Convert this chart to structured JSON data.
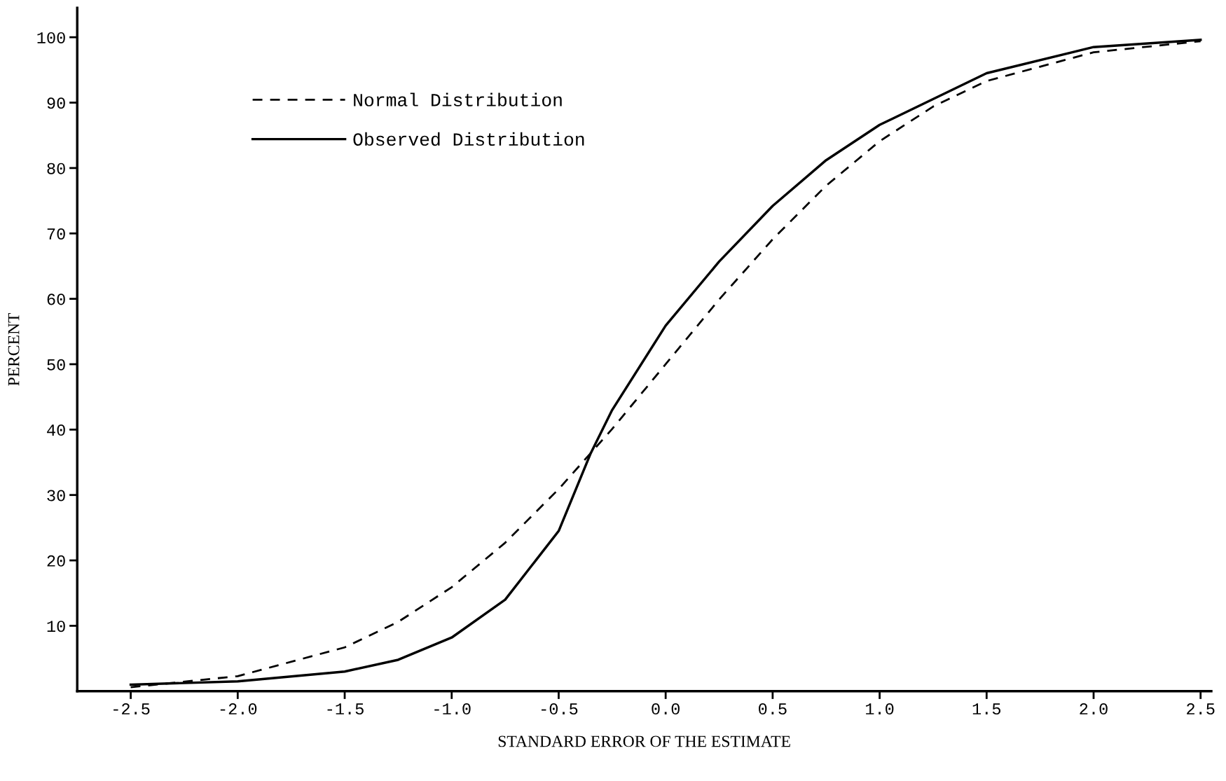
{
  "chart_data": {
    "type": "line",
    "xlabel": "STANDARD ERROR OF THE ESTIMATE",
    "ylabel": "PERCENT",
    "xlim": [
      -2.75,
      2.55
    ],
    "ylim": [
      0,
      104.5
    ],
    "xticks": [
      {
        "value": -2.5,
        "label": "-2.5"
      },
      {
        "value": -2.0,
        "label": "-2.0"
      },
      {
        "value": -1.5,
        "label": "-1.5"
      },
      {
        "value": -1.0,
        "label": "-1.0"
      },
      {
        "value": -0.5,
        "label": "-0.5"
      },
      {
        "value": 0.0,
        "label": "0.0"
      },
      {
        "value": 0.5,
        "label": "0.5"
      },
      {
        "value": 1.0,
        "label": "1.0"
      },
      {
        "value": 1.5,
        "label": "1.5"
      },
      {
        "value": 2.0,
        "label": "2.0"
      },
      {
        "value": 2.5,
        "label": "2.5"
      }
    ],
    "yticks": [
      10,
      20,
      30,
      40,
      50,
      60,
      70,
      80,
      90,
      100
    ],
    "grid": false,
    "legend": "top left",
    "marker": "none",
    "series": [
      {
        "name": "Normal Distribution",
        "color": "#000000",
        "line_style": "dashed",
        "x": [
          -2.5,
          -2.0,
          -1.5,
          -1.25,
          -1.0,
          -0.75,
          -0.5,
          -0.25,
          0.0,
          0.25,
          0.5,
          0.75,
          1.0,
          1.25,
          1.5,
          2.0,
          2.5
        ],
        "values": [
          0.6,
          2.3,
          6.7,
          10.6,
          15.9,
          22.7,
          30.9,
          40.1,
          50.0,
          59.9,
          69.1,
          77.3,
          84.1,
          89.4,
          93.3,
          97.7,
          99.4
        ]
      },
      {
        "name": "Observed Distribution",
        "color": "#000000",
        "line_style": "solid",
        "x": [
          -2.5,
          -2.0,
          -1.5,
          -1.25,
          -1.0,
          -0.75,
          -0.5,
          -0.35,
          -0.25,
          0.0,
          0.25,
          0.5,
          0.75,
          1.0,
          1.5,
          2.0,
          2.5
        ],
        "values": [
          1.0,
          1.5,
          3.0,
          4.8,
          8.2,
          14.0,
          24.5,
          36.4,
          43.0,
          55.9,
          65.7,
          74.2,
          81.2,
          86.6,
          94.5,
          98.5,
          99.6
        ]
      }
    ]
  }
}
